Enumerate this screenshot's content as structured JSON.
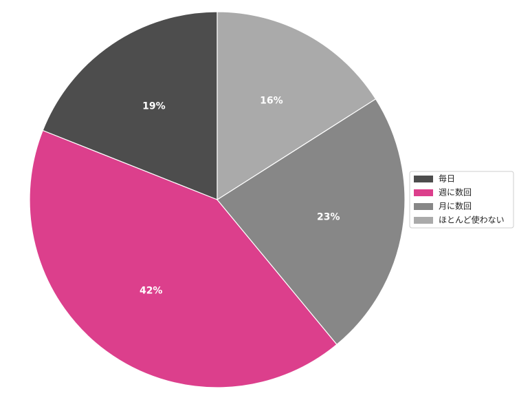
{
  "chart_data": {
    "type": "pie",
    "categories": [
      "毎日",
      "週に数回",
      "月に数回",
      "ほとんど使わない"
    ],
    "values": [
      19,
      42,
      23,
      16
    ],
    "value_labels": [
      "19%",
      "42%",
      "23%",
      "16%"
    ],
    "colors": [
      "#4d4d4d",
      "#dc3f8c",
      "#878787",
      "#aaaaaa"
    ],
    "direction": "counterclockwise",
    "legend": "right"
  }
}
